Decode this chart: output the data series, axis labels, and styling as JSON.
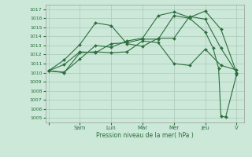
{
  "background_color": "#cce8d8",
  "grid_color": "#aac8b8",
  "line_color": "#2d6e3e",
  "ylim": [
    1004.5,
    1017.5
  ],
  "yticks": [
    1005,
    1006,
    1007,
    1008,
    1009,
    1010,
    1011,
    1012,
    1013,
    1014,
    1015,
    1016,
    1017
  ],
  "xlabel": "Pression niveau de la mer( hPa )",
  "xtick_labels": [
    "",
    "Sam",
    "Lun",
    "Mar",
    "Mer",
    "Jeu",
    "V"
  ],
  "xtick_positions": [
    0,
    2,
    4,
    6,
    8,
    10,
    12
  ],
  "line1_x": [
    0,
    1,
    2,
    3,
    4,
    5,
    6,
    7,
    8,
    9,
    10,
    11,
    12
  ],
  "line1_y": [
    1010.2,
    1010.05,
    1011.5,
    1013.0,
    1012.8,
    1013.5,
    1013.8,
    1016.3,
    1016.7,
    1016.1,
    1016.8,
    1014.8,
    1010.0
  ],
  "line2_x": [
    0,
    1,
    2,
    3,
    4,
    5,
    6,
    7,
    8,
    9,
    10,
    11,
    12
  ],
  "line2_y": [
    1010.2,
    1011.4,
    1013.1,
    1015.5,
    1015.2,
    1013.2,
    1012.9,
    1013.8,
    1013.8,
    1016.2,
    1015.9,
    1012.7,
    1010.0
  ],
  "line3_x": [
    0,
    1,
    2,
    3,
    4,
    5,
    6,
    7,
    8,
    9,
    10,
    11,
    12
  ],
  "line3_y": [
    1010.2,
    1010.0,
    1012.2,
    1012.3,
    1012.2,
    1012.3,
    1013.5,
    1013.3,
    1011.0,
    1010.8,
    1012.6,
    1010.8,
    1010.3
  ],
  "line4_x": [
    0,
    1,
    2,
    3,
    4,
    5,
    6,
    7,
    8,
    9,
    10,
    10.5,
    10.85,
    11.0,
    11.3,
    12
  ],
  "line4_y": [
    1010.2,
    1010.9,
    1012.3,
    1012.2,
    1013.2,
    1013.3,
    1013.7,
    1013.7,
    1016.3,
    1016.0,
    1014.5,
    1012.7,
    1010.5,
    1005.2,
    1005.1,
    1009.8
  ],
  "figsize": [
    3.2,
    2.0
  ],
  "dpi": 100
}
